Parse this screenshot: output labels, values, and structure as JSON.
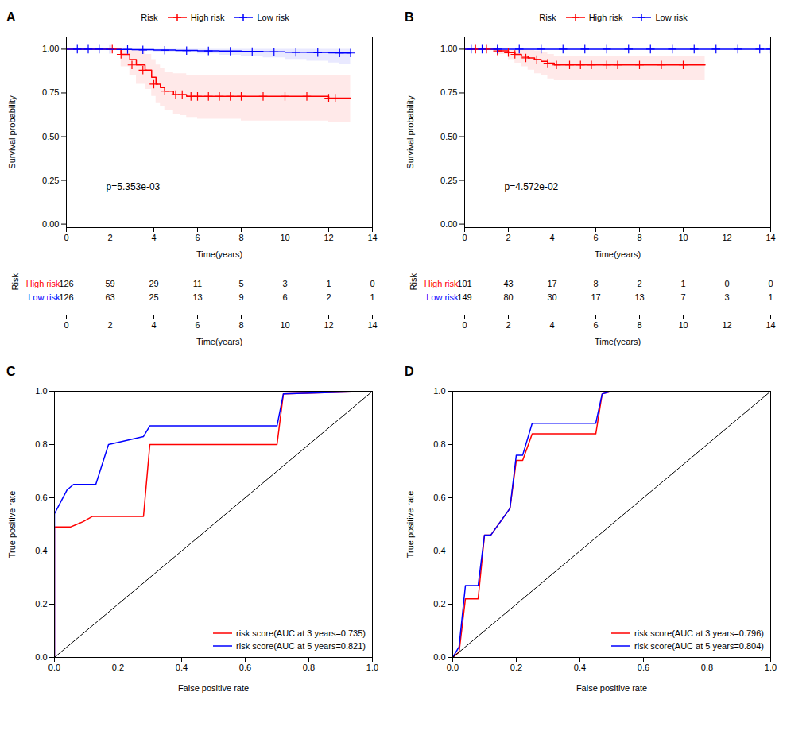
{
  "chart_data": [
    {
      "type": "survival",
      "title": "A",
      "annotation": "p=5.353e-03",
      "xlabel": "Time(years)",
      "ylabel": "Survival probability",
      "xlim": [
        0,
        14
      ],
      "ylim": [
        -0.02,
        1.07
      ],
      "xticks": [
        0,
        2,
        4,
        6,
        8,
        10,
        12,
        14
      ],
      "yticks": [
        {
          "value": 0.0,
          "label": "0.00"
        },
        0.25,
        {
          "value": 0.5,
          "label": "0.50"
        },
        0.75,
        {
          "value": 1.0,
          "label": "1.00"
        }
      ],
      "legend": "top",
      "legend_title": "Risk",
      "series": [
        {
          "name": "High risk",
          "color": "#FF0000",
          "ci_color": "#FFB6B6",
          "marker": "plus",
          "x": [
            0.0,
            2.1,
            2.5,
            2.9,
            3.2,
            3.6,
            3.9,
            4.1,
            4.3,
            4.5,
            4.7,
            4.9,
            5.2,
            5.5,
            6.0,
            7.0,
            8.0,
            9.0,
            10.0,
            11.0,
            12.0,
            12.5,
            13.0
          ],
          "values": [
            1.0,
            1.0,
            0.97,
            0.94,
            0.91,
            0.88,
            0.84,
            0.8,
            0.78,
            0.76,
            0.76,
            0.74,
            0.74,
            0.73,
            0.73,
            0.73,
            0.73,
            0.73,
            0.73,
            0.73,
            0.72,
            0.72,
            0.72
          ],
          "ci_upper": [
            1.0,
            1.0,
            1.0,
            1.0,
            1.0,
            0.97,
            0.94,
            0.91,
            0.89,
            0.87,
            0.87,
            0.86,
            0.86,
            0.85,
            0.85,
            0.85,
            0.85,
            0.85,
            0.85,
            0.85,
            0.85,
            0.85,
            0.85
          ],
          "ci_lower": [
            1.0,
            1.0,
            0.9,
            0.85,
            0.8,
            0.77,
            0.73,
            0.69,
            0.67,
            0.65,
            0.65,
            0.63,
            0.62,
            0.61,
            0.6,
            0.6,
            0.59,
            0.59,
            0.59,
            0.59,
            0.58,
            0.58,
            0.58
          ],
          "censored_x": [
            2.1,
            2.5,
            3.0,
            3.5,
            4.0,
            4.5,
            5.0,
            5.3,
            5.7,
            6.0,
            6.5,
            7.0,
            7.5,
            8.0,
            9.0,
            10.0,
            11.0,
            12.0,
            12.3
          ],
          "censored_values": [
            1.0,
            0.97,
            0.91,
            0.88,
            0.8,
            0.76,
            0.74,
            0.74,
            0.73,
            0.73,
            0.73,
            0.73,
            0.73,
            0.73,
            0.73,
            0.73,
            0.73,
            0.72,
            0.72
          ],
          "at_risk": [
            126,
            59,
            29,
            11,
            5,
            3,
            1,
            0
          ]
        },
        {
          "name": "Low risk",
          "color": "#0000FF",
          "ci_color": "#B6B6FF",
          "marker": "plus",
          "x": [
            0.0,
            0.3,
            0.8,
            1.5,
            2.2,
            3.0,
            4.0,
            5.0,
            6.0,
            7.0,
            8.0,
            9.0,
            10.0,
            11.0,
            12.0,
            12.5,
            13.0
          ],
          "values": [
            1.0,
            1.0,
            1.0,
            1.0,
            0.999,
            0.997,
            0.995,
            0.993,
            0.991,
            0.989,
            0.987,
            0.985,
            0.983,
            0.981,
            0.979,
            0.978,
            0.978
          ],
          "ci_upper": [
            1.0,
            1.0,
            1.0,
            1.0,
            1.0,
            1.0,
            1.0,
            1.0,
            1.0,
            1.0,
            1.0,
            1.0,
            1.0,
            1.0,
            1.0,
            1.0,
            1.0
          ],
          "ci_lower": [
            1.0,
            1.0,
            1.0,
            1.0,
            0.994,
            0.989,
            0.984,
            0.979,
            0.973,
            0.966,
            0.959,
            0.951,
            0.942,
            0.932,
            0.921,
            0.916,
            0.916
          ],
          "censored_x": [
            0.5,
            1.0,
            1.5,
            2.0,
            2.8,
            3.5,
            4.5,
            5.5,
            6.5,
            7.5,
            8.5,
            9.5,
            10.5,
            11.5,
            12.5,
            13.0
          ],
          "censored_values": [
            1.0,
            1.0,
            1.0,
            0.999,
            0.998,
            0.996,
            0.994,
            0.992,
            0.99,
            0.988,
            0.986,
            0.984,
            0.982,
            0.98,
            0.978,
            0.978
          ],
          "at_risk": [
            126,
            63,
            25,
            13,
            9,
            6,
            2,
            1
          ]
        }
      ],
      "risk_table": {
        "label": "Risk",
        "xlabel": "Time(years)",
        "x": [
          0,
          2,
          4,
          6,
          8,
          10,
          12,
          14
        ]
      }
    },
    {
      "type": "survival",
      "title": "B",
      "annotation": "p=4.572e-02",
      "xlabel": "Time(years)",
      "ylabel": "Survival probability",
      "xlim": [
        0,
        14
      ],
      "ylim": [
        -0.02,
        1.07
      ],
      "xticks": [
        0,
        2,
        4,
        6,
        8,
        10,
        12,
        14
      ],
      "yticks": [
        {
          "value": 0.0,
          "label": "0.00"
        },
        0.25,
        {
          "value": 0.5,
          "label": "0.50"
        },
        0.75,
        {
          "value": 1.0,
          "label": "1.00"
        }
      ],
      "legend": "top",
      "legend_title": "Risk",
      "series": [
        {
          "name": "High risk",
          "color": "#FF0000",
          "ci_color": "#FFB6B6",
          "marker": "plus",
          "x": [
            0.0,
            1.0,
            1.5,
            2.0,
            2.3,
            2.6,
            2.9,
            3.2,
            3.5,
            3.8,
            4.1,
            4.5,
            5.0,
            6.0,
            7.0,
            8.0,
            9.0,
            10.0,
            10.5,
            11.0
          ],
          "values": [
            1.0,
            1.0,
            0.99,
            0.98,
            0.97,
            0.96,
            0.95,
            0.94,
            0.93,
            0.92,
            0.91,
            0.91,
            0.91,
            0.91,
            0.91,
            0.91,
            0.91,
            0.91,
            0.91,
            0.91
          ],
          "ci_upper": [
            1.0,
            1.0,
            1.0,
            1.0,
            1.0,
            1.0,
            1.0,
            0.99,
            0.98,
            0.97,
            0.96,
            0.96,
            0.96,
            0.96,
            0.96,
            0.96,
            0.96,
            0.96,
            0.96,
            0.96
          ],
          "ci_lower": [
            1.0,
            1.0,
            0.97,
            0.94,
            0.92,
            0.9,
            0.88,
            0.86,
            0.85,
            0.83,
            0.82,
            0.82,
            0.82,
            0.82,
            0.82,
            0.82,
            0.82,
            0.82,
            0.82,
            0.82
          ],
          "censored_x": [
            0.5,
            1.0,
            1.5,
            2.0,
            2.3,
            2.8,
            3.3,
            3.8,
            4.2,
            4.8,
            5.3,
            5.8,
            6.5,
            7.0,
            8.0,
            9.0,
            10.0
          ],
          "censored_values": [
            1.0,
            1.0,
            0.99,
            0.98,
            0.97,
            0.95,
            0.94,
            0.92,
            0.91,
            0.91,
            0.91,
            0.91,
            0.91,
            0.91,
            0.91,
            0.91,
            0.91
          ],
          "at_risk": [
            101,
            43,
            17,
            8,
            2,
            1,
            0,
            0
          ]
        },
        {
          "name": "Low risk",
          "color": "#0000FF",
          "ci_color": "#B6B6FF",
          "marker": "plus",
          "x": [
            0.0,
            0.5,
            1.0,
            2.0,
            3.0,
            4.0,
            5.0,
            6.0,
            7.0,
            8.0,
            9.0,
            10.0,
            11.0,
            12.0,
            13.0,
            14.0
          ],
          "values": [
            1.0,
            1.0,
            1.0,
            1.0,
            1.0,
            1.0,
            1.0,
            1.0,
            1.0,
            1.0,
            1.0,
            1.0,
            1.0,
            1.0,
            1.0,
            1.0
          ],
          "ci_upper": [
            1.0,
            1.0,
            1.0,
            1.0,
            1.0,
            1.0,
            1.0,
            1.0,
            1.0,
            1.0,
            1.0,
            1.0,
            1.0,
            1.0,
            1.0,
            1.0
          ],
          "ci_lower": [
            1.0,
            1.0,
            1.0,
            1.0,
            1.0,
            1.0,
            1.0,
            1.0,
            1.0,
            1.0,
            1.0,
            1.0,
            1.0,
            1.0,
            1.0,
            1.0
          ],
          "censored_x": [
            0.3,
            0.8,
            1.5,
            2.5,
            3.5,
            4.5,
            5.5,
            6.5,
            7.5,
            8.5,
            9.5,
            10.5,
            11.5,
            12.5,
            13.5,
            14.0
          ],
          "censored_values": [
            1.0,
            1.0,
            1.0,
            1.0,
            1.0,
            1.0,
            1.0,
            1.0,
            1.0,
            1.0,
            1.0,
            1.0,
            1.0,
            1.0,
            1.0,
            1.0
          ],
          "at_risk": [
            149,
            80,
            30,
            17,
            13,
            7,
            3,
            1
          ]
        }
      ],
      "risk_table": {
        "label": "Risk",
        "xlabel": "Time(years)",
        "x": [
          0,
          2,
          4,
          6,
          8,
          10,
          12,
          14
        ]
      }
    },
    {
      "type": "line",
      "title": "C",
      "xlabel": "False positive rate",
      "ylabel": "True positive rate",
      "xlim": [
        0,
        1
      ],
      "ylim": [
        0,
        1
      ],
      "xticks": [
        {
          "value": 0.0,
          "label": "0.0"
        },
        0.2,
        0.4,
        0.6,
        0.8,
        {
          "value": 1.0,
          "label": "1.0"
        }
      ],
      "yticks": [
        {
          "value": 0.0,
          "label": "0.0"
        },
        0.2,
        0.4,
        0.6,
        0.8,
        {
          "value": 1.0,
          "label": "1.0"
        }
      ],
      "legend": "lower right",
      "series": [
        {
          "name": "risk score(AUC at 3 years=0.735)",
          "color": "#FF0000",
          "x": [
            0.0,
            0.0,
            0.04,
            0.05,
            0.07,
            0.09,
            0.12,
            0.28,
            0.3,
            0.32,
            0.7,
            0.72,
            1.0
          ],
          "values": [
            0.0,
            0.49,
            0.49,
            0.49,
            0.5,
            0.51,
            0.53,
            0.53,
            0.8,
            0.8,
            0.8,
            0.99,
            1.0
          ]
        },
        {
          "name": "risk score(AUC at 5 years=0.821)",
          "color": "#0000FF",
          "x": [
            0.0,
            0.0,
            0.04,
            0.06,
            0.08,
            0.1,
            0.13,
            0.17,
            0.28,
            0.3,
            0.33,
            0.35,
            0.7,
            0.72,
            1.0
          ],
          "values": [
            0.0,
            0.54,
            0.63,
            0.65,
            0.65,
            0.65,
            0.65,
            0.8,
            0.83,
            0.87,
            0.87,
            0.87,
            0.87,
            0.99,
            1.0
          ]
        }
      ],
      "reference_line": {
        "x": [
          0,
          1
        ],
        "values": [
          0,
          1
        ],
        "color": "#000000"
      }
    },
    {
      "type": "line",
      "title": "D",
      "xlabel": "False positive rate",
      "ylabel": "True positive rate",
      "xlim": [
        0,
        1
      ],
      "ylim": [
        0,
        1
      ],
      "xticks": [
        {
          "value": 0.0,
          "label": "0.0"
        },
        0.2,
        0.4,
        0.6,
        0.8,
        {
          "value": 1.0,
          "label": "1.0"
        }
      ],
      "yticks": [
        {
          "value": 0.0,
          "label": "0.0"
        },
        0.2,
        0.4,
        0.6,
        0.8,
        {
          "value": 1.0,
          "label": "1.0"
        }
      ],
      "legend": "lower right",
      "series": [
        {
          "name": "risk score(AUC at 3 years=0.796)",
          "color": "#FF0000",
          "x": [
            0.0,
            0.02,
            0.04,
            0.06,
            0.08,
            0.1,
            0.12,
            0.18,
            0.2,
            0.22,
            0.25,
            0.28,
            0.45,
            0.47,
            0.5,
            1.0
          ],
          "values": [
            0.0,
            0.02,
            0.22,
            0.22,
            0.22,
            0.46,
            0.46,
            0.56,
            0.74,
            0.74,
            0.84,
            0.84,
            0.84,
            0.99,
            1.0,
            1.0
          ]
        },
        {
          "name": "risk score(AUC at 5 years=0.804)",
          "color": "#0000FF",
          "x": [
            0.0,
            0.02,
            0.04,
            0.06,
            0.08,
            0.1,
            0.12,
            0.18,
            0.2,
            0.22,
            0.25,
            0.28,
            0.45,
            0.47,
            0.5,
            1.0
          ],
          "values": [
            0.0,
            0.04,
            0.27,
            0.27,
            0.27,
            0.46,
            0.46,
            0.56,
            0.76,
            0.76,
            0.88,
            0.88,
            0.88,
            0.99,
            1.0,
            1.0
          ]
        }
      ],
      "reference_line": {
        "x": [
          0,
          1
        ],
        "values": [
          0,
          1
        ],
        "color": "#000000"
      }
    }
  ]
}
